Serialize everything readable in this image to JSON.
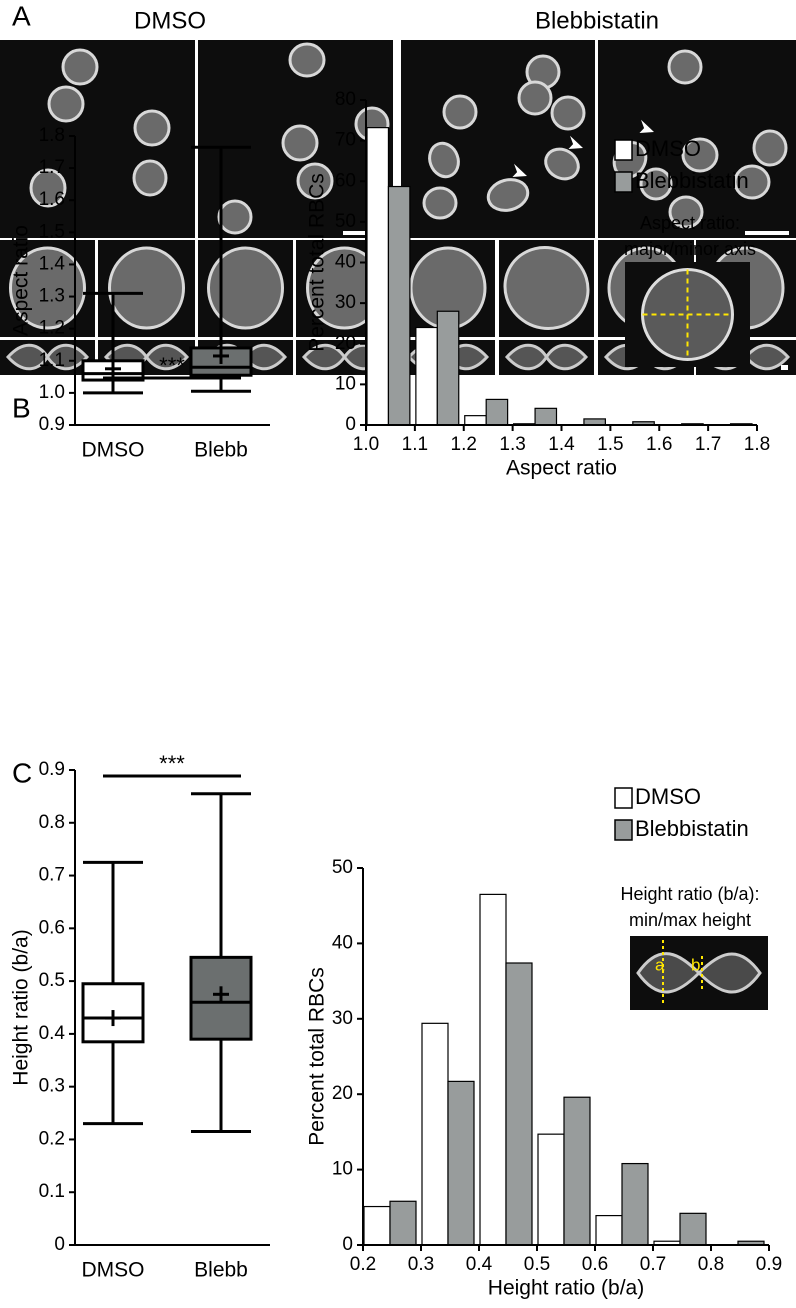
{
  "panel_labels": [
    "A",
    "B",
    "C"
  ],
  "panel_a": {
    "conditions": [
      "DMSO",
      "Blebbistatin"
    ]
  },
  "chart_data": [
    {
      "type": "box",
      "ylabel": "Aspect ratio",
      "categories": [
        "DMSO",
        "Blebb"
      ],
      "colors": [
        "#ffffff",
        "#6b6f6f"
      ],
      "boxes": [
        {
          "min": 1.0,
          "q1": 1.04,
          "median": 1.06,
          "q3": 1.1,
          "max": 1.31,
          "mean": 1.075
        },
        {
          "min": 1.005,
          "q1": 1.055,
          "median": 1.08,
          "q3": 1.14,
          "max": 1.765,
          "mean": 1.115
        }
      ],
      "significance": "***",
      "ylim": [
        0.9,
        1.8
      ],
      "yticks": [
        0.9,
        {
          "value": 1,
          "label": "1.0"
        },
        1.1,
        1.2,
        1.3,
        1.4,
        1.5,
        1.6,
        1.7,
        1.8
      ]
    },
    {
      "type": "histogram",
      "xlabel": "Aspect ratio",
      "ylabel": "Percent total RBCs",
      "bins": [
        1,
        1.1,
        1.2,
        1.3,
        1.4,
        1.5,
        1.6,
        1.7,
        1.8
      ],
      "series": [
        {
          "name": "DMSO",
          "color": "#ffffff",
          "values": [
            73.2,
            24.0,
            2.3,
            0.3,
            0,
            0,
            0,
            0
          ]
        },
        {
          "name": "Blebbistatin",
          "color": "#989c9c",
          "values": [
            58.7,
            28.0,
            6.3,
            4.1,
            1.5,
            0.8,
            0.3,
            0.3
          ]
        }
      ],
      "legend": "upper right",
      "annotation": [
        "Aspect ratio:",
        "major/minor axis"
      ],
      "xlim": [
        1,
        1.8
      ],
      "xticks": [
        {
          "value": 1,
          "label": "1.0"
        },
        1.1,
        1.2,
        1.3,
        1.4,
        1.5,
        1.6,
        1.7,
        1.8
      ],
      "ylim": [
        0,
        80
      ],
      "yticks": [
        0,
        10,
        20,
        30,
        40,
        50,
        60,
        70,
        80
      ]
    },
    {
      "type": "box",
      "ylabel": "Height ratio (b/a)",
      "categories": [
        "DMSO",
        "Blebb"
      ],
      "colors": [
        "#ffffff",
        "#6b6f6f"
      ],
      "boxes": [
        {
          "min": 0.23,
          "q1": 0.385,
          "median": 0.43,
          "q3": 0.495,
          "max": 0.725,
          "mean": 0.43
        },
        {
          "min": 0.215,
          "q1": 0.39,
          "median": 0.46,
          "q3": 0.545,
          "max": 0.855,
          "mean": 0.475
        }
      ],
      "significance": "***",
      "ylim": [
        0,
        0.9
      ],
      "yticks": [
        0,
        0.1,
        0.2,
        0.3,
        0.4,
        0.5,
        0.6,
        0.7,
        0.8,
        0.9
      ]
    },
    {
      "type": "histogram",
      "xlabel": "Height ratio (b/a)",
      "ylabel": "Percent total RBCs",
      "bins": [
        0.2,
        0.3,
        0.4,
        0.5,
        0.6,
        0.7,
        0.8,
        0.9
      ],
      "series": [
        {
          "name": "DMSO",
          "color": "#ffffff",
          "values": [
            5.1,
            29.4,
            46.5,
            14.7,
            3.9,
            0.5,
            0
          ]
        },
        {
          "name": "Blebbistatin",
          "color": "#989c9c",
          "values": [
            5.8,
            21.7,
            37.4,
            19.6,
            10.8,
            4.2,
            0.5
          ]
        }
      ],
      "legend": "upper right",
      "annotation": [
        "Height ratio (b/a):",
        "min/max height"
      ],
      "inset_labels": [
        "a",
        "b"
      ],
      "xlim": [
        0.2,
        0.9
      ],
      "xticks": [
        0.2,
        0.3,
        0.4,
        0.5,
        0.6,
        0.7,
        0.8,
        0.9
      ],
      "ylim": [
        0,
        50
      ],
      "yticks": [
        0,
        10,
        20,
        30,
        40,
        50
      ]
    }
  ]
}
